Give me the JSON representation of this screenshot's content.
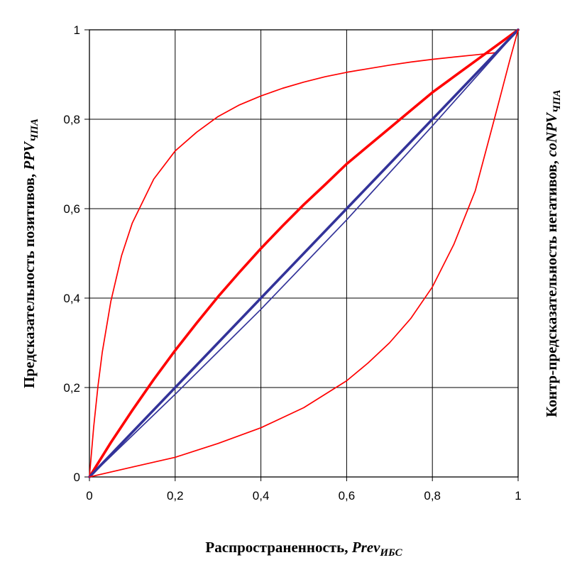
{
  "chart_data": {
    "type": "line",
    "xlabel": {
      "text": "Распространенность, ",
      "var": "Prev",
      "sub": "ИБС"
    },
    "ylabel_left": {
      "text": "Предсказательность позитивов, ",
      "var": "PPV",
      "sub": "ЧПА"
    },
    "ylabel_right": {
      "text": "Контр-предсказательность негативов, ",
      "var": "coNPV",
      "sub": "ЧПА"
    },
    "xlim": [
      0,
      1
    ],
    "ylim": [
      0,
      1
    ],
    "x_ticks": [
      {
        "value": 0,
        "label": "0"
      },
      {
        "value": 0.2,
        "label": "0,2"
      },
      {
        "value": 0.4,
        "label": "0,4"
      },
      {
        "value": 0.6,
        "label": "0,6"
      },
      {
        "value": 0.8,
        "label": "0,8"
      },
      {
        "value": 1,
        "label": "1"
      }
    ],
    "y_ticks": [
      {
        "value": 0,
        "label": "0"
      },
      {
        "value": 0.2,
        "label": "0,2"
      },
      {
        "value": 0.4,
        "label": "0,4"
      },
      {
        "value": 0.6,
        "label": "0,6"
      },
      {
        "value": 0.8,
        "label": "0,8"
      },
      {
        "value": 1,
        "label": "1"
      }
    ],
    "grid": true,
    "series": [
      {
        "color": "#ff0000",
        "weight": "thin",
        "x": [
          0,
          0.01,
          0.02,
          0.03,
          0.05,
          0.075,
          0.1,
          0.15,
          0.2,
          0.25,
          0.3,
          0.35,
          0.4,
          0.45,
          0.5,
          0.55,
          0.6,
          0.65,
          0.7,
          0.75,
          0.8,
          0.85,
          0.9,
          0.95,
          1
        ],
        "y": [
          0,
          0.112,
          0.204,
          0.279,
          0.393,
          0.495,
          0.568,
          0.666,
          0.729,
          0.771,
          0.806,
          0.832,
          0.852,
          0.869,
          0.883,
          0.895,
          0.905,
          0.913,
          0.921,
          0.928,
          0.934,
          0.939,
          0.944,
          0.949,
          1
        ]
      },
      {
        "color": "#ff0000",
        "weight": "thick",
        "x": [
          0,
          0.05,
          0.1,
          0.15,
          0.2,
          0.25,
          0.3,
          0.35,
          0.4,
          0.45,
          0.5,
          0.55,
          0.6,
          0.65,
          0.7,
          0.75,
          0.8,
          0.85,
          0.9,
          0.95,
          1
        ],
        "y": [
          0,
          0.077,
          0.149,
          0.218,
          0.283,
          0.344,
          0.403,
          0.458,
          0.511,
          0.561,
          0.609,
          0.654,
          0.7,
          0.74,
          0.78,
          0.82,
          0.86,
          0.895,
          0.93,
          0.965,
          1
        ]
      },
      {
        "color": "#333399",
        "weight": "thick",
        "x": [
          0,
          1
        ],
        "y": [
          0,
          1
        ]
      },
      {
        "color": "#333399",
        "weight": "thin",
        "x": [
          0,
          0.2,
          0.4,
          0.6,
          0.8,
          1
        ],
        "y": [
          0,
          0.185,
          0.375,
          0.575,
          0.785,
          1
        ]
      },
      {
        "color": "#ff0000",
        "weight": "thin",
        "x": [
          0,
          0.1,
          0.2,
          0.3,
          0.4,
          0.5,
          0.6,
          0.65,
          0.7,
          0.75,
          0.8,
          0.85,
          0.9,
          0.95,
          0.98,
          1
        ],
        "y": [
          0,
          0.022,
          0.044,
          0.075,
          0.11,
          0.155,
          0.215,
          0.255,
          0.3,
          0.355,
          0.425,
          0.52,
          0.64,
          0.82,
          0.93,
          1
        ]
      }
    ]
  }
}
